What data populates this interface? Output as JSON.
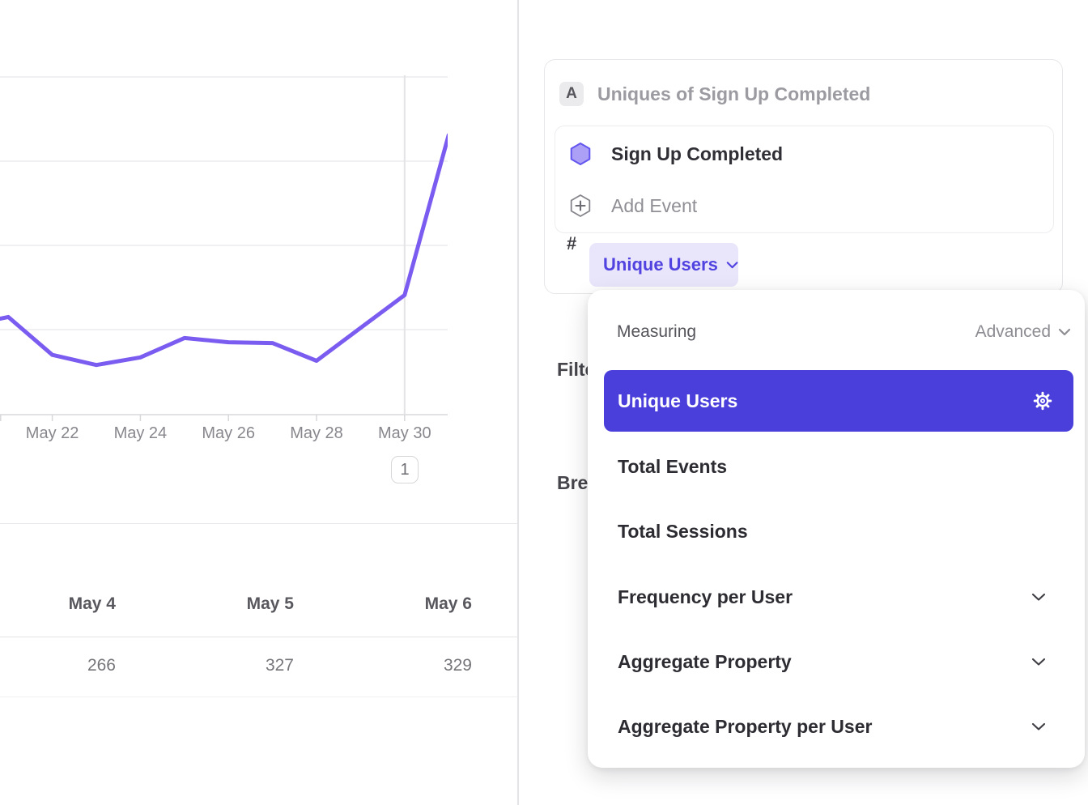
{
  "chart_data": {
    "type": "line",
    "title": "Uniques of Sign Up Completed",
    "x_tick_labels": [
      "May 22",
      "May 24",
      "May 26",
      "May 28",
      "May 30"
    ],
    "x_visible_range": [
      "May 21",
      "May 31"
    ],
    "y_gridline_values": [
      100,
      200,
      300,
      400
    ],
    "ylim": [
      0,
      402
    ],
    "grid": "horizontal gridlines, vertical annotation line at May 30, y-axis labels not visible",
    "legend": "none",
    "annotation_marker": "1",
    "left_edge_value": 113,
    "series": [
      {
        "name": "Sign Up Completed",
        "color": "#7b5cf0",
        "x": [
          "May 21",
          "May 22",
          "May 23",
          "May 24",
          "May 25",
          "May 26",
          "May 27",
          "May 28",
          "May 29",
          "May 30",
          "May 31"
        ],
        "values": [
          115,
          70,
          58,
          67,
          90,
          85,
          84,
          63,
          102,
          141,
          331
        ]
      }
    ]
  },
  "summary_table": {
    "columns": [
      {
        "header": "May 4",
        "value": "266"
      },
      {
        "header": "May 5",
        "value": "327"
      },
      {
        "header": "May 6",
        "value": "329"
      }
    ]
  },
  "metric_card": {
    "series_letter": "A",
    "series_title": "Uniques of Sign Up Completed",
    "event_name": "Sign Up Completed",
    "add_event_label": "Add Event",
    "count_symbol": "#",
    "measurement_label": "Unique Users"
  },
  "background_panel": {
    "filter_heading": "Filter",
    "breakdown_heading": "Breakdown"
  },
  "measuring_menu": {
    "heading": "Measuring",
    "mode_label": "Advanced",
    "selected_item": "Unique Users",
    "items": [
      {
        "label": "Total Events",
        "has_submenu": false
      },
      {
        "label": "Total Sessions",
        "has_submenu": false
      },
      {
        "label": "Frequency per User",
        "has_submenu": true
      },
      {
        "label": "Aggregate Property",
        "has_submenu": true
      },
      {
        "label": "Aggregate Property per User",
        "has_submenu": true
      }
    ]
  },
  "colors": {
    "accent_purple": "#4b3fdb",
    "line_purple": "#7b5cf0",
    "pill_bg": "#e9e5fb",
    "pill_text": "#5143e0",
    "hexagon_fill": "#aba0f6",
    "hexagon_stroke": "#6355ef"
  }
}
